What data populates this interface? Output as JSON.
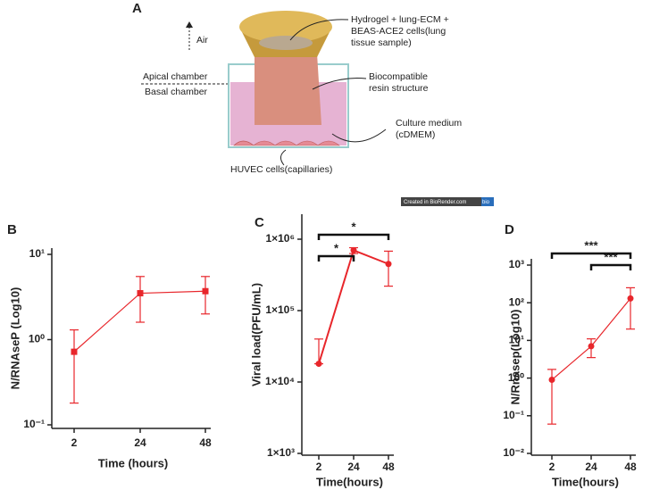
{
  "diagram": {
    "panel": "A",
    "labels": {
      "air": "Air",
      "apical": "Apical chamber",
      "basal": "Basal chamber",
      "hydrogel": [
        "Hydrogel + lung-ECM +",
        "BEAS-ACE2 cells(lung",
        "tissue sample)"
      ],
      "resin": [
        "Biocompatible",
        "resin structure"
      ],
      "medium": [
        "Culture medium",
        "(cDMEM)"
      ],
      "huvec": "HUVEC cells(capillaries)"
    },
    "badge": {
      "text": "Created in BioRender.com",
      "logo": "bio"
    }
  },
  "chart_data": [
    {
      "type": "line",
      "panel": "B",
      "ylabel": "N/RNAseP (Log10)",
      "xlabel": "Time (hours)",
      "log_y": true,
      "categories": [
        "2",
        "24",
        "48"
      ],
      "series": [
        {
          "color": "#e8262b",
          "marker": "square",
          "values": [
            0.72,
            3.5,
            3.7
          ],
          "lower": [
            0.18,
            1.6,
            2.0
          ],
          "upper": [
            1.3,
            5.5,
            5.5
          ]
        }
      ],
      "ylim": [
        0.1,
        10
      ],
      "yticks": [
        {
          "value": 0.1,
          "label": "10⁻¹"
        },
        {
          "value": 1,
          "label": "10⁰"
        },
        {
          "value": 10,
          "label": "10¹"
        }
      ]
    },
    {
      "type": "line",
      "panel": "C",
      "ylabel": "Viral load(PFU/mL)",
      "xlabel": "Time(hours)",
      "log_y": true,
      "categories": [
        "2",
        "24",
        "48"
      ],
      "series": [
        {
          "color": "#e8262b",
          "marker": "circle",
          "values": [
            18000,
            700000,
            450000
          ],
          "lower": [
            18000,
            630000,
            220000
          ],
          "upper": [
            40000,
            760000,
            680000
          ]
        }
      ],
      "ylim": [
        1000,
        1000000
      ],
      "yticks": [
        {
          "value": 1000,
          "label": "1×10³"
        },
        {
          "value": 10000,
          "label": "1×10⁴"
        },
        {
          "value": 100000,
          "label": "1×10⁵"
        },
        {
          "value": 1000000,
          "label": "1×10⁶"
        }
      ],
      "comparisons": [
        {
          "label": "*",
          "groups": [
            "2",
            "24"
          ]
        },
        {
          "label": "*",
          "groups": [
            "2",
            "48"
          ]
        }
      ]
    },
    {
      "type": "line",
      "panel": "D",
      "ylabel": "N/Rnasep(Log10)",
      "xlabel": "Time(hours)",
      "log_y": true,
      "categories": [
        "2",
        "24",
        "48"
      ],
      "series": [
        {
          "color": "#e8262b",
          "marker": "circle",
          "values": [
            0.9,
            7,
            130
          ],
          "lower": [
            0.06,
            3.5,
            20
          ],
          "upper": [
            1.7,
            11,
            250
          ]
        }
      ],
      "ylim": [
        0.01,
        1000
      ],
      "yticks": [
        {
          "value": 0.01,
          "label": "10⁻²"
        },
        {
          "value": 0.1,
          "label": "10⁻¹"
        },
        {
          "value": 1,
          "label": "10⁰"
        },
        {
          "value": 10,
          "label": "10¹"
        },
        {
          "value": 100,
          "label": "10²"
        },
        {
          "value": 1000,
          "label": "10³"
        }
      ],
      "comparisons": [
        {
          "label": "***",
          "groups": [
            "2",
            "48"
          ]
        },
        {
          "label": "***",
          "groups": [
            "24",
            "48"
          ]
        }
      ]
    }
  ]
}
